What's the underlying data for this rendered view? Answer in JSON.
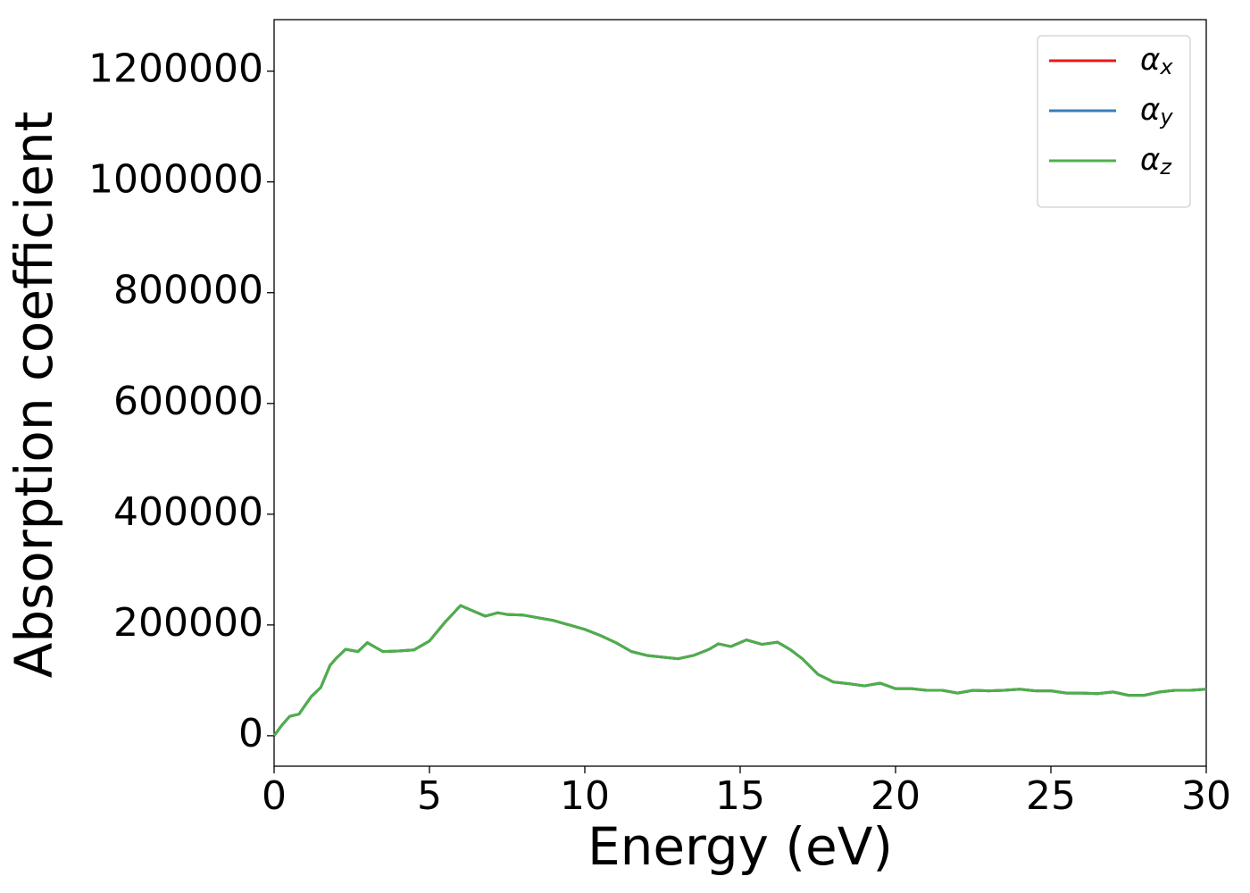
{
  "chart_data": {
    "type": "line",
    "xlabel": "Energy (eV)",
    "ylabel": "Absorption coefficient",
    "x": [
      0,
      0.25,
      0.5,
      0.8,
      1.0,
      1.2,
      1.5,
      1.8,
      2.0,
      2.3,
      2.7,
      3.0,
      3.5,
      4.0,
      4.5,
      5.0,
      5.5,
      6.0,
      6.5,
      6.8,
      7.2,
      7.5,
      8.0,
      8.5,
      9.0,
      9.5,
      10.0,
      10.5,
      11.0,
      11.5,
      12.0,
      12.5,
      13.0,
      13.5,
      14.0,
      14.3,
      14.7,
      15.2,
      15.7,
      16.2,
      16.6,
      17.0,
      17.5,
      18.0,
      18.5,
      19.0,
      19.5,
      20.0,
      20.5,
      21.0,
      21.5,
      22.0,
      22.5,
      23.0,
      23.5,
      24.0,
      24.5,
      25.0,
      25.5,
      26.0,
      26.5,
      27.0,
      27.5,
      28.0,
      28.5,
      29.0,
      29.5,
      30.0
    ],
    "series": [
      {
        "name": "αx",
        "color": "#e41a1c",
        "values": [
          0,
          19000,
          35000,
          39000,
          55000,
          71000,
          87000,
          127000,
          140000,
          156000,
          152000,
          168000,
          152000,
          153000,
          155000,
          171000,
          205000,
          235000,
          223000,
          216000,
          222000,
          219000,
          218000,
          213000,
          208000,
          200000,
          192000,
          181000,
          168000,
          152000,
          145000,
          142000,
          139000,
          145000,
          156000,
          166000,
          161000,
          173000,
          165000,
          169000,
          156000,
          139000,
          111000,
          97000,
          94000,
          90000,
          95000,
          85000,
          85000,
          82000,
          82000,
          77000,
          82000,
          81000,
          82000,
          84000,
          81000,
          81000,
          77000,
          77000,
          76000,
          79000,
          73000,
          73000,
          79000,
          82000,
          82000,
          84000
        ]
      },
      {
        "name": "αy",
        "color": "#377eb8",
        "values": [
          0,
          19000,
          35000,
          39000,
          55000,
          71000,
          87000,
          127000,
          140000,
          156000,
          152000,
          168000,
          152000,
          153000,
          155000,
          171000,
          205000,
          235000,
          223000,
          216000,
          222000,
          219000,
          218000,
          213000,
          208000,
          200000,
          192000,
          181000,
          168000,
          152000,
          145000,
          142000,
          139000,
          145000,
          156000,
          166000,
          161000,
          173000,
          165000,
          169000,
          156000,
          139000,
          111000,
          97000,
          94000,
          90000,
          95000,
          85000,
          85000,
          82000,
          82000,
          77000,
          82000,
          81000,
          82000,
          84000,
          81000,
          81000,
          77000,
          77000,
          76000,
          79000,
          73000,
          73000,
          79000,
          82000,
          82000,
          84000
        ]
      },
      {
        "name": "αz",
        "color": "#4daf4a",
        "values": [
          0,
          19000,
          35000,
          39000,
          55000,
          71000,
          87000,
          127000,
          140000,
          156000,
          152000,
          168000,
          152000,
          153000,
          155000,
          171000,
          205000,
          235000,
          223000,
          216000,
          222000,
          219000,
          218000,
          213000,
          208000,
          200000,
          192000,
          181000,
          168000,
          152000,
          145000,
          142000,
          139000,
          145000,
          156000,
          166000,
          161000,
          173000,
          165000,
          169000,
          156000,
          139000,
          111000,
          97000,
          94000,
          90000,
          95000,
          85000,
          85000,
          82000,
          82000,
          77000,
          82000,
          81000,
          82000,
          84000,
          81000,
          81000,
          77000,
          77000,
          76000,
          79000,
          73000,
          73000,
          79000,
          82000,
          82000,
          84000
        ]
      }
    ],
    "xlim": [
      0,
      30
    ],
    "xticks": [
      0,
      5,
      10,
      15,
      20,
      25,
      30
    ],
    "ylim": [
      -55000,
      1293000
    ],
    "yticks": [
      0,
      200000,
      400000,
      600000,
      800000,
      1000000,
      1200000
    ],
    "legend": "upper right",
    "grid": false
  }
}
